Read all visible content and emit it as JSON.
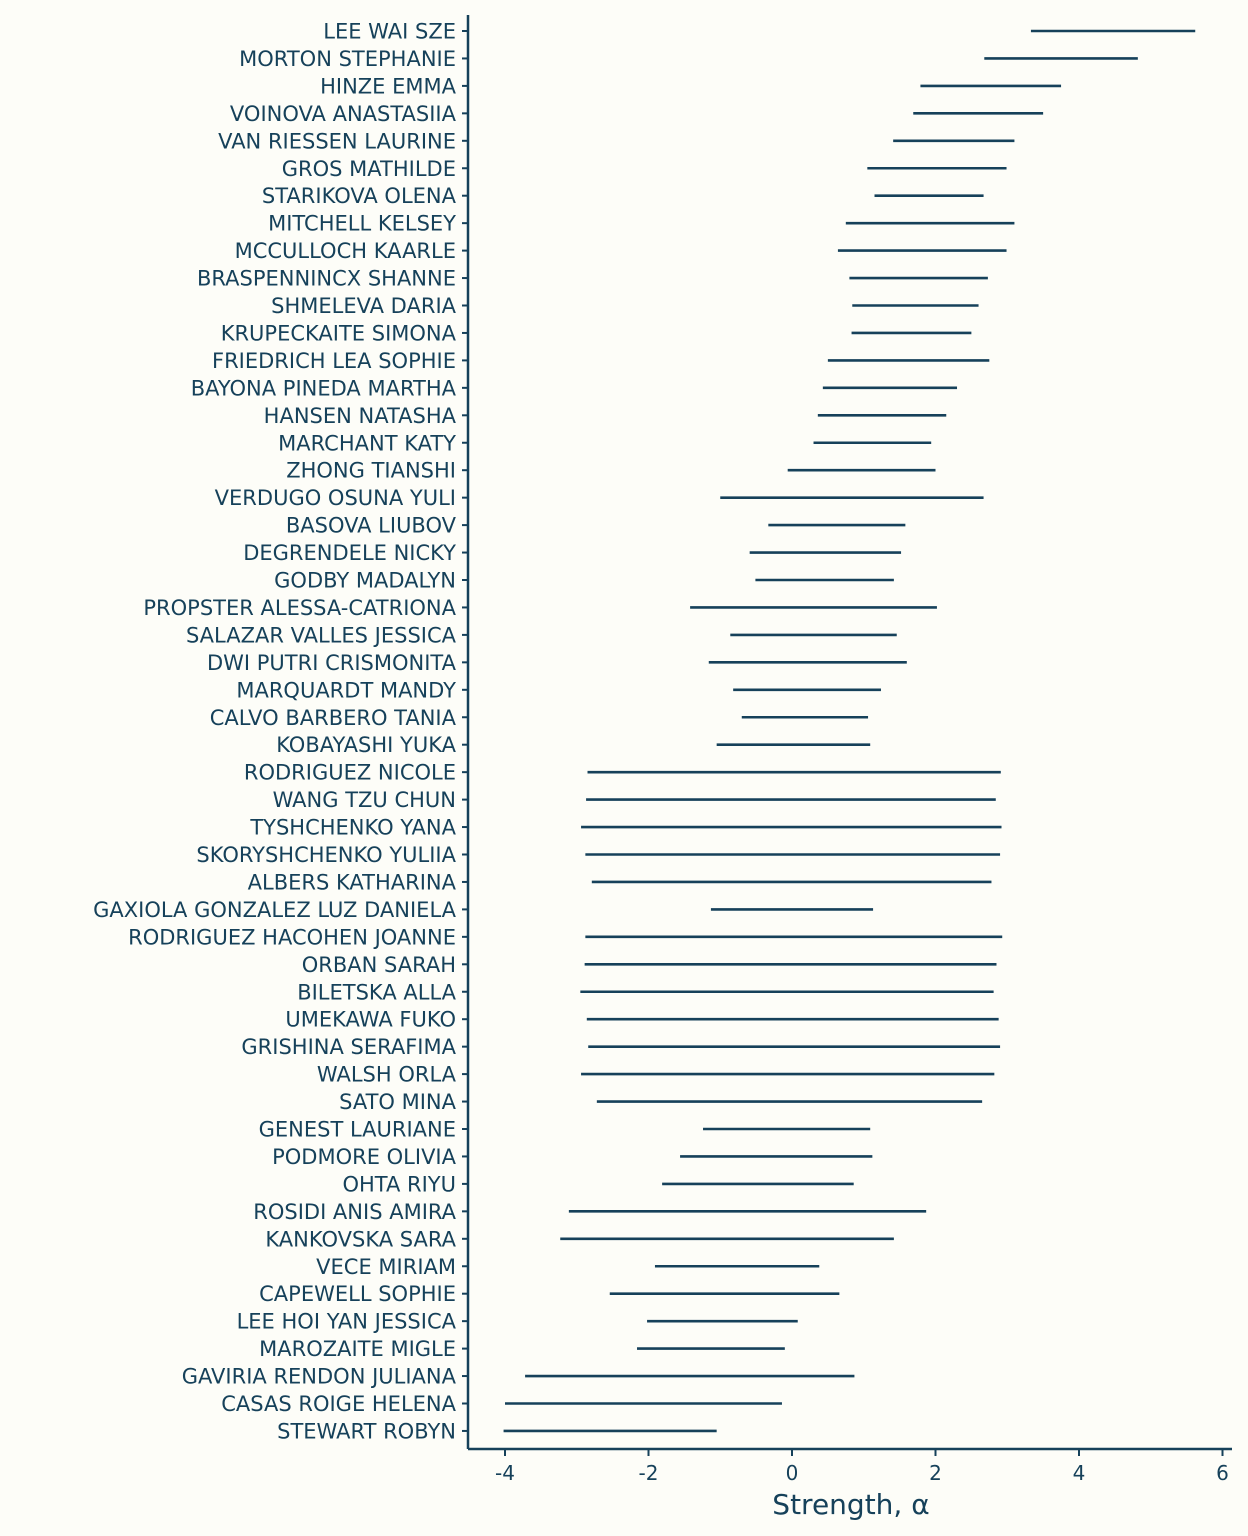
{
  "colors": {
    "background": "#fdfdf8",
    "ink": "#16415a"
  },
  "chart_data": {
    "type": "interval",
    "xlabel": "Strength, α",
    "xlim": [
      -4.5,
      6.1
    ],
    "xticks": [
      -4,
      -2,
      0,
      2,
      4,
      6
    ],
    "xtick_labels": [
      "-4",
      "-2",
      "0",
      "2",
      "4",
      "6"
    ],
    "grid": false,
    "legend": "none",
    "rows": [
      {
        "label": "LEE WAI SZE",
        "low": 3.33,
        "high": 5.62
      },
      {
        "label": "MORTON STEPHANIE",
        "low": 2.68,
        "high": 4.82
      },
      {
        "label": "HINZE EMMA",
        "low": 1.79,
        "high": 3.75
      },
      {
        "label": "VOINOVA ANASTASIIA",
        "low": 1.69,
        "high": 3.5
      },
      {
        "label": "VAN RIESSEN LAURINE",
        "low": 1.41,
        "high": 3.1
      },
      {
        "label": "GROS MATHILDE",
        "low": 1.05,
        "high": 2.99
      },
      {
        "label": "STARIKOVA OLENA",
        "low": 1.15,
        "high": 2.67
      },
      {
        "label": "MITCHELL KELSEY",
        "low": 0.75,
        "high": 3.1
      },
      {
        "label": "MCCULLOCH KAARLE",
        "low": 0.64,
        "high": 2.99
      },
      {
        "label": "BRASPENNINCX SHANNE",
        "low": 0.8,
        "high": 2.73
      },
      {
        "label": "SHMELEVA DARIA",
        "low": 0.84,
        "high": 2.6
      },
      {
        "label": "KRUPECKAITE SIMONA",
        "low": 0.83,
        "high": 2.5
      },
      {
        "label": "FRIEDRICH LEA SOPHIE",
        "low": 0.5,
        "high": 2.75
      },
      {
        "label": "BAYONA PINEDA MARTHA",
        "low": 0.43,
        "high": 2.3
      },
      {
        "label": "HANSEN NATASHA",
        "low": 0.36,
        "high": 2.15
      },
      {
        "label": "MARCHANT KATY",
        "low": 0.3,
        "high": 1.94
      },
      {
        "label": "ZHONG TIANSHI",
        "low": -0.06,
        "high": 2.0
      },
      {
        "label": "VERDUGO OSUNA YULI",
        "low": -1.0,
        "high": 2.67
      },
      {
        "label": "BASOVA LIUBOV",
        "low": -0.33,
        "high": 1.58
      },
      {
        "label": "DEGRENDELE NICKY",
        "low": -0.59,
        "high": 1.52
      },
      {
        "label": "GODBY MADALYN",
        "low": -0.51,
        "high": 1.42
      },
      {
        "label": "PROPSTER ALESSA-CATRIONA",
        "low": -1.42,
        "high": 2.02
      },
      {
        "label": "SALAZAR VALLES JESSICA",
        "low": -0.86,
        "high": 1.46
      },
      {
        "label": "DWI PUTRI CRISMONITA",
        "low": -1.16,
        "high": 1.6
      },
      {
        "label": "MARQUARDT MANDY",
        "low": -0.82,
        "high": 1.24
      },
      {
        "label": "CALVO BARBERO TANIA",
        "low": -0.7,
        "high": 1.06
      },
      {
        "label": "KOBAYASHI YUKA",
        "low": -1.05,
        "high": 1.09
      },
      {
        "label": "RODRIGUEZ NICOLE",
        "low": -2.85,
        "high": 2.91
      },
      {
        "label": "WANG TZU CHUN",
        "low": -2.87,
        "high": 2.84
      },
      {
        "label": "TYSHCHENKO YANA",
        "low": -2.94,
        "high": 2.92
      },
      {
        "label": "SKORYSHCHENKO YULIIA",
        "low": -2.88,
        "high": 2.9
      },
      {
        "label": "ALBERS KATHARINA",
        "low": -2.79,
        "high": 2.78
      },
      {
        "label": "GAXIOLA GONZALEZ LUZ DANIELA",
        "low": -1.13,
        "high": 1.13
      },
      {
        "label": "RODRIGUEZ HACOHEN JOANNE",
        "low": -2.88,
        "high": 2.93
      },
      {
        "label": "ORBAN SARAH",
        "low": -2.89,
        "high": 2.85
      },
      {
        "label": "BILETSKA ALLA",
        "low": -2.95,
        "high": 2.81
      },
      {
        "label": "UMEKAWA FUKO",
        "low": -2.86,
        "high": 2.88
      },
      {
        "label": "GRISHINA SERAFIMA",
        "low": -2.84,
        "high": 2.9
      },
      {
        "label": "WALSH ORLA",
        "low": -2.94,
        "high": 2.82
      },
      {
        "label": "SATO MINA",
        "low": -2.72,
        "high": 2.65
      },
      {
        "label": "GENEST LAURIANE",
        "low": -1.24,
        "high": 1.09
      },
      {
        "label": "PODMORE OLIVIA",
        "low": -1.56,
        "high": 1.12
      },
      {
        "label": "OHTA RIYU",
        "low": -1.81,
        "high": 0.86
      },
      {
        "label": "ROSIDI ANIS AMIRA",
        "low": -3.11,
        "high": 1.87
      },
      {
        "label": "KANKOVSKA SARA",
        "low": -3.23,
        "high": 1.42
      },
      {
        "label": "VECE MIRIAM",
        "low": -1.91,
        "high": 0.38
      },
      {
        "label": "CAPEWELL SOPHIE",
        "low": -2.54,
        "high": 0.66
      },
      {
        "label": "LEE HOI YAN JESSICA",
        "low": -2.02,
        "high": 0.08
      },
      {
        "label": "MAROZAITE MIGLE",
        "low": -2.16,
        "high": -0.1
      },
      {
        "label": "GAVIRIA RENDON JULIANA",
        "low": -3.72,
        "high": 0.87
      },
      {
        "label": "CASAS ROIGE HELENA",
        "low": -4.0,
        "high": -0.14
      },
      {
        "label": "STEWART ROBYN",
        "low": -4.02,
        "high": -1.05
      }
    ]
  }
}
